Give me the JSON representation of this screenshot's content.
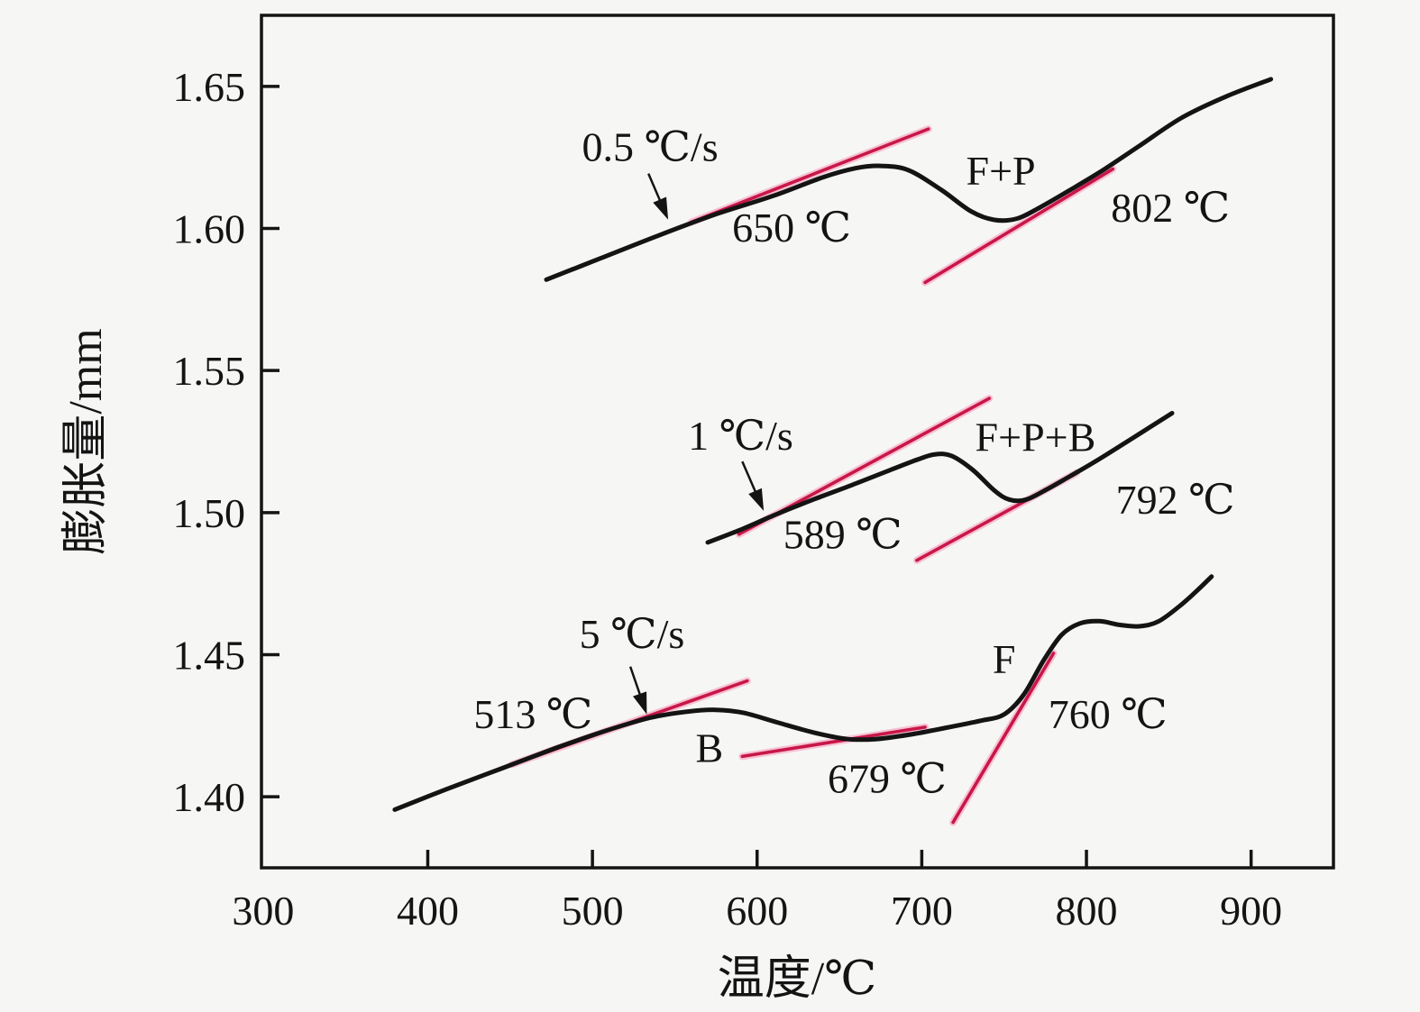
{
  "figure": {
    "background": "#f6f6f4",
    "frame_color": "#141414",
    "curve_color": "#141414",
    "tangent_color": "#c81748",
    "tangent_halo": "#f7aec9"
  },
  "chart_data": {
    "type": "line",
    "title": "",
    "xlabel": "温度/℃",
    "ylabel": "膨胀量/mm",
    "xlim": [
      299,
      950
    ],
    "ylim": [
      1.375,
      1.675
    ],
    "grid": false,
    "legend": "none (curves labeled inline with arrows)",
    "x_ticks": [
      300,
      400,
      500,
      600,
      700,
      800,
      900
    ],
    "x_tick_labels": [
      "300",
      "400",
      "500",
      "600",
      "700",
      "800",
      "900"
    ],
    "y_ticks": [
      1.4,
      1.45,
      1.5,
      1.55,
      1.6,
      1.65
    ],
    "y_tick_labels": [
      "1.40",
      "1.45",
      "1.50",
      "1.55",
      "1.60",
      "1.65"
    ],
    "series": [
      {
        "name": "0.5 C/s cooling curve",
        "rate_label": "0.5 ℃/s",
        "transformation_start_C": 650,
        "transformation_finish_C": 802,
        "phases": "F+P",
        "points": [
          [
            472,
            1.582
          ],
          [
            505,
            1.5895
          ],
          [
            540,
            1.5975
          ],
          [
            575,
            1.605
          ],
          [
            610,
            1.6115
          ],
          [
            640,
            1.618
          ],
          [
            660,
            1.6212
          ],
          [
            675,
            1.622
          ],
          [
            692,
            1.6205
          ],
          [
            712,
            1.6135
          ],
          [
            730,
            1.606
          ],
          [
            744,
            1.603
          ],
          [
            758,
            1.6035
          ],
          [
            772,
            1.6075
          ],
          [
            790,
            1.6135
          ],
          [
            810,
            1.6205
          ],
          [
            832,
            1.629
          ],
          [
            858,
            1.639
          ],
          [
            885,
            1.6465
          ],
          [
            912,
            1.6525
          ]
        ]
      },
      {
        "name": "1 C/s cooling curve",
        "rate_label": "1 ℃/s",
        "transformation_start_C": 589,
        "transformation_finish_C": 792,
        "phases": "F+P+B",
        "points": [
          [
            570,
            1.4895
          ],
          [
            590,
            1.494
          ],
          [
            612,
            1.4995
          ],
          [
            635,
            1.5048
          ],
          [
            658,
            1.5098
          ],
          [
            680,
            1.5148
          ],
          [
            698,
            1.5188
          ],
          [
            708,
            1.5205
          ],
          [
            718,
            1.52
          ],
          [
            731,
            1.515
          ],
          [
            744,
            1.5078
          ],
          [
            753,
            1.5046
          ],
          [
            763,
            1.5045
          ],
          [
            776,
            1.5082
          ],
          [
            790,
            1.5128
          ],
          [
            806,
            1.5182
          ],
          [
            828,
            1.5262
          ],
          [
            852,
            1.535
          ]
        ]
      },
      {
        "name": "5 C/s cooling curve",
        "rate_label": "5 ℃/s",
        "transformation_start_C": 513,
        "transformation_mid_C": 679,
        "transformation_finish_C": 760,
        "phases": "B, F",
        "points": [
          [
            380,
            1.3955
          ],
          [
            412,
            1.4028
          ],
          [
            445,
            1.41
          ],
          [
            478,
            1.4172
          ],
          [
            508,
            1.4232
          ],
          [
            535,
            1.4278
          ],
          [
            558,
            1.43
          ],
          [
            575,
            1.4306
          ],
          [
            592,
            1.4295
          ],
          [
            612,
            1.4262
          ],
          [
            635,
            1.4225
          ],
          [
            655,
            1.4203
          ],
          [
            672,
            1.4203
          ],
          [
            692,
            1.4218
          ],
          [
            715,
            1.4243
          ],
          [
            736,
            1.4268
          ],
          [
            750,
            1.429
          ],
          [
            762,
            1.436
          ],
          [
            774,
            1.448
          ],
          [
            785,
            1.457
          ],
          [
            796,
            1.461
          ],
          [
            808,
            1.4618
          ],
          [
            820,
            1.4605
          ],
          [
            832,
            1.46
          ],
          [
            844,
            1.4618
          ],
          [
            858,
            1.4678
          ],
          [
            868,
            1.473
          ],
          [
            876,
            1.4775
          ]
        ]
      }
    ],
    "tangent_lines": [
      {
        "series": 0,
        "marks_C": 650,
        "from": [
          560,
          1.6022
        ],
        "to": [
          704,
          1.635
        ]
      },
      {
        "series": 0,
        "marks_C": 802,
        "from": [
          702,
          1.581
        ],
        "to": [
          816,
          1.6209
        ]
      },
      {
        "series": 1,
        "marks_C": 589,
        "from": [
          589,
          1.4924
        ],
        "to": [
          741,
          1.5402
        ]
      },
      {
        "series": 1,
        "marks_C": 792,
        "from": [
          697,
          1.4832
        ],
        "to": [
          794,
          1.514
        ]
      },
      {
        "series": 2,
        "marks_C": 513,
        "from": [
          451,
          1.4113
        ],
        "to": [
          594,
          1.4408
        ]
      },
      {
        "series": 2,
        "marks_C": 679,
        "from": [
          591,
          1.4142
        ],
        "to": [
          702,
          1.4245
        ]
      },
      {
        "series": 2,
        "marks_C": 760,
        "from": [
          719,
          1.391
        ],
        "to": [
          780,
          1.4505
        ]
      }
    ],
    "annotations": [
      {
        "text": "0.5 ℃/s",
        "T": 535,
        "V": 1.6288
      },
      {
        "text": "650 ℃",
        "T": 621,
        "V": 1.6005
      },
      {
        "text": "F+P",
        "T": 748,
        "V": 1.6205
      },
      {
        "text": "802 ℃",
        "T": 851,
        "V": 1.6075
      },
      {
        "text": "1 ℃/s",
        "T": 590,
        "V": 1.5272
      },
      {
        "text": "589 ℃",
        "T": 652,
        "V": 1.4925
      },
      {
        "text": "F+P+B",
        "T": 769,
        "V": 1.5268
      },
      {
        "text": "792 ℃",
        "T": 854,
        "V": 1.5047
      },
      {
        "text": "5 ℃/s",
        "T": 524,
        "V": 1.4575
      },
      {
        "text": "513 ℃",
        "T": 464,
        "V": 1.4293
      },
      {
        "text": "B",
        "T": 571,
        "V": 1.4173
      },
      {
        "text": "679 ℃",
        "T": 679,
        "V": 1.4065
      },
      {
        "text": "F",
        "T": 750,
        "V": 1.4486
      },
      {
        "text": "760 ℃",
        "T": 813,
        "V": 1.4293
      }
    ],
    "arrows": [
      {
        "label": "0.5 ℃/s",
        "from": [
          534,
          1.6193
        ],
        "to": [
          546,
          1.6031
        ]
      },
      {
        "label": "1 ℃/s",
        "from": [
          591,
          1.518
        ],
        "to": [
          604,
          1.5006
        ]
      },
      {
        "label": "5 ℃/s",
        "from": [
          523,
          1.4458
        ],
        "to": [
          533,
          1.429
        ]
      }
    ]
  }
}
